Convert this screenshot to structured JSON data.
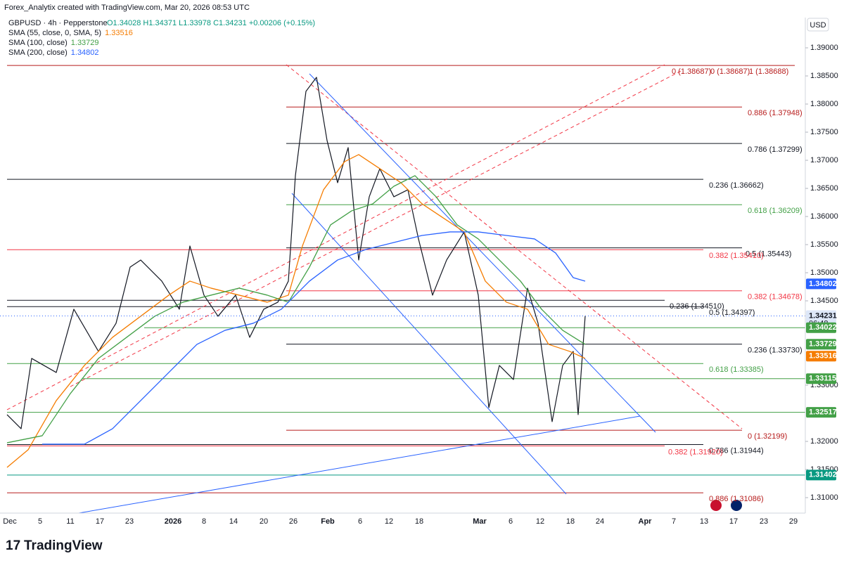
{
  "header": {
    "attribution": "Forex_Analytix created with TradingView.com, Mar 20, 2026 08:53 UTC",
    "brand": "TradingView",
    "currency": "USD"
  },
  "legend": {
    "symbol": "GBPUSD · 4h · Pepperstone",
    "ohlc": "O1.34028 H1.34371 L1.33978 C1.34231 +0.00206 (+0.15%)",
    "indicators": [
      {
        "name": "SMA (55, close, 0, SMA, 5)",
        "value": "1.33516",
        "color": "#f57c00"
      },
      {
        "name": "SMA (100, close)",
        "value": "1.33729",
        "color": "#43a047"
      },
      {
        "name": "SMA (200, close)",
        "value": "1.34802",
        "color": "#2962ff"
      }
    ]
  },
  "chart_data": {
    "type": "line",
    "ylim": [
      1.30725,
      1.39538
    ],
    "yticks": [
      {
        "value": 1.39,
        "label": "1.39000"
      },
      {
        "value": 1.385,
        "label": "1.38500"
      },
      {
        "value": 1.38,
        "label": "1.38000"
      },
      {
        "value": 1.375,
        "label": "1.37500"
      },
      {
        "value": 1.37,
        "label": "1.37000"
      },
      {
        "value": 1.365,
        "label": "1.36500"
      },
      {
        "value": 1.36,
        "label": "1.36000"
      },
      {
        "value": 1.355,
        "label": "1.35500"
      },
      {
        "value": 1.35,
        "label": "1.35000"
      },
      {
        "value": 1.345,
        "label": "1.34500"
      },
      {
        "value": 1.33,
        "label": "1.33000"
      },
      {
        "value": 1.32,
        "label": "1.32000"
      },
      {
        "value": 1.315,
        "label": "1.31500"
      },
      {
        "value": 1.31,
        "label": "1.31000"
      }
    ],
    "xticks": [
      "Dec",
      "5",
      "11",
      "17",
      "23",
      "2026",
      "8",
      "14",
      "20",
      "26",
      "Feb",
      "6",
      "12",
      "18",
      "Mar",
      "6",
      "12",
      "18",
      "24",
      "Apr",
      "7",
      "13",
      "17",
      "23",
      "29"
    ],
    "series": [
      {
        "name": "GBPUSD",
        "color": "#131722",
        "values": [
          1.32476,
          1.32226,
          1.33476,
          1.33226,
          1.34351,
          1.33601,
          1.34101,
          1.35101,
          1.35226,
          1.34851,
          1.34351,
          1.35476,
          1.34601,
          1.34226,
          1.34601,
          1.33851,
          1.34351,
          1.34476,
          1.34851,
          1.36726,
          1.38226,
          1.38476,
          1.37351,
          1.36601,
          1.37226,
          1.35226,
          1.36351,
          1.36851,
          1.36351,
          1.36476,
          1.35601,
          1.34601,
          1.35226,
          1.35726,
          1.34601,
          1.32601,
          1.33351,
          1.33101,
          1.34726,
          1.34101,
          1.32351,
          1.33351,
          1.33601,
          1.32476,
          1.34231
        ]
      },
      {
        "name": "SMA 55",
        "color": "#f57c00",
        "values": [
          1.31538,
          1.31851,
          1.32726,
          1.33351,
          1.33851,
          1.34226,
          1.34601,
          1.34851,
          1.34726,
          1.34601,
          1.34476,
          1.34601,
          1.35476,
          1.36476,
          1.36976,
          1.37101,
          1.36851,
          1.36601,
          1.36226,
          1.35976,
          1.35726,
          1.34851,
          1.34476,
          1.34351,
          1.33726,
          1.33601,
          1.33476
        ]
      },
      {
        "name": "SMA 100",
        "color": "#43a047",
        "values": [
          1.31976,
          1.32101,
          1.32851,
          1.33476,
          1.33851,
          1.34226,
          1.34476,
          1.34601,
          1.34726,
          1.34601,
          1.34476,
          1.35101,
          1.35851,
          1.36101,
          1.36226,
          1.36538,
          1.36726,
          1.36351,
          1.35851,
          1.35601,
          1.35226,
          1.34851,
          1.34351,
          1.33976,
          1.33726
        ]
      },
      {
        "name": "SMA 200",
        "color": "#2962ff",
        "values": [
          1.31951,
          1.31951,
          1.32226,
          1.32726,
          1.33226,
          1.33726,
          1.33976,
          1.34101,
          1.34351,
          1.34851,
          1.35226,
          1.35413,
          1.35538,
          1.35663,
          1.35726,
          1.35726,
          1.35663,
          1.35601,
          1.35351,
          1.34913,
          1.34851
        ]
      }
    ],
    "levels": [
      {
        "value": 1.38687,
        "color": "#b71c1c"
      },
      {
        "value": 1.37948,
        "color": "#b71c1c"
      },
      {
        "value": 1.37299,
        "color": "#131722"
      },
      {
        "value": 1.36662,
        "color": "#131722"
      },
      {
        "value": 1.36209,
        "color": "#43a047"
      },
      {
        "value": 1.35443,
        "color": "#131722"
      },
      {
        "value": 1.3541,
        "color": "#f23645"
      },
      {
        "value": 1.34678,
        "color": "#f23645"
      },
      {
        "value": 1.3451,
        "color": "#131722"
      },
      {
        "value": 1.34397,
        "color": "#131722"
      },
      {
        "value": 1.34022,
        "color": "#43a047"
      },
      {
        "value": 1.3373,
        "color": "#131722"
      },
      {
        "value": 1.33385,
        "color": "#43a047"
      },
      {
        "value": 1.33115,
        "color": "#43a047"
      },
      {
        "value": 1.32517,
        "color": "#43a047"
      },
      {
        "value": 1.32199,
        "color": "#b71c1c"
      },
      {
        "value": 1.31944,
        "color": "#131722"
      },
      {
        "value": 1.3192,
        "color": "#f23645"
      },
      {
        "value": 1.31402,
        "color": "#089981"
      },
      {
        "value": 1.31086,
        "color": "#b71c1c"
      }
    ],
    "level_labels": [
      {
        "value": 1.38687,
        "label": "0 (1.38687)",
        "color": "#b71c1c"
      },
      {
        "value": 1.38687,
        "label": "0 (1.38687)",
        "color": "#b71c1c"
      },
      {
        "value": 1.38688,
        "label": "1 (1.38688)",
        "color": "#b71c1c"
      },
      {
        "value": 1.37948,
        "label": "0.886 (1.37948)",
        "color": "#b71c1c"
      },
      {
        "value": 1.37299,
        "label": "0.786 (1.37299)",
        "color": "#131722"
      },
      {
        "value": 1.36662,
        "label": "0.236 (1.36662)",
        "color": "#131722"
      },
      {
        "value": 1.36209,
        "label": "0.618 (1.36209)",
        "color": "#43a047"
      },
      {
        "value": 1.35443,
        "label": "0.5 (1.35443)",
        "color": "#131722"
      },
      {
        "value": 1.3541,
        "label": "0.382 (1.35410)",
        "color": "#f23645"
      },
      {
        "value": 1.34678,
        "label": "0.382 (1.34678)",
        "color": "#f23645"
      },
      {
        "value": 1.3451,
        "label": "0.236 (1.34510)",
        "color": "#131722"
      },
      {
        "value": 1.34397,
        "label": "0.5 (1.34397)",
        "color": "#131722"
      },
      {
        "value": 1.3373,
        "label": "0.236 (1.33730)",
        "color": "#131722"
      },
      {
        "value": 1.33385,
        "label": "0.618 (1.33385)",
        "color": "#43a047"
      },
      {
        "value": 1.32199,
        "label": "0 (1.32199)",
        "color": "#b71c1c"
      },
      {
        "value": 1.31944,
        "label": "0.786 (1.31944)",
        "color": "#131722"
      },
      {
        "value": 1.3192,
        "label": "0.382 (1.31920)",
        "color": "#f23645"
      },
      {
        "value": 1.31086,
        "label": "0.886 (1.31086)",
        "color": "#b71c1c"
      }
    ],
    "trendlines": [
      {
        "color": "#f23645",
        "dashed": true,
        "values": [
          1.32563,
          1.387
        ]
      },
      {
        "color": "#f23645",
        "dashed": true,
        "values": [
          1.32975,
          1.386
        ]
      },
      {
        "color": "#f23645",
        "dashed": true,
        "values": [
          1.387,
          1.32225
        ]
      },
      {
        "color": "#2962ff",
        "dashed": false,
        "values": [
          1.38538,
          1.32163
        ]
      },
      {
        "color": "#2962ff",
        "dashed": false,
        "values": [
          1.36413,
          1.31063
        ]
      },
      {
        "color": "#2962ff",
        "dashed": false,
        "values": [
          1.30725,
          1.3245
        ]
      }
    ],
    "price_badges": [
      {
        "value": 1.34802,
        "label": "1.34802",
        "color": "#2962ff"
      },
      {
        "value": 1.34231,
        "label": "1.34231",
        "color": "#dde7f8",
        "time": "06:48"
      },
      {
        "value": 1.34022,
        "label": "1.34022",
        "color": "#43a047"
      },
      {
        "value": 1.33729,
        "label": "1.33729",
        "color": "#43a047"
      },
      {
        "value": 1.33516,
        "label": "1.33516",
        "color": "#f57c00"
      },
      {
        "value": 1.33115,
        "label": "1.33115",
        "color": "#43a047"
      },
      {
        "value": 1.32517,
        "label": "1.32517",
        "color": "#43a047"
      },
      {
        "value": 1.31402,
        "label": "1.31402",
        "color": "#089981"
      }
    ]
  }
}
